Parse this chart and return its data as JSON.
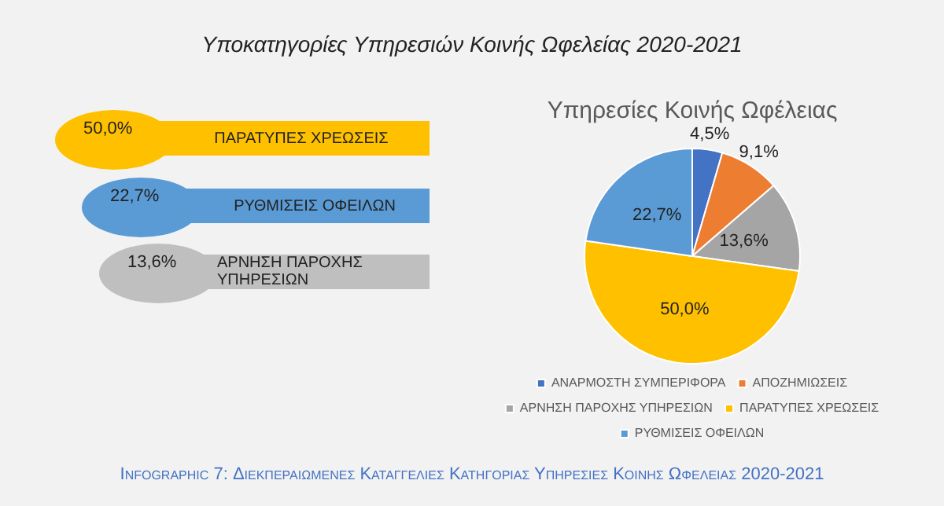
{
  "chart_data": [
    {
      "type": "other",
      "title": "Υποκατηγορίες Υπηρεσιών Κοινής Ωφελείας 2020-2021",
      "categories": [
        "ΠΑΡΑΤΥΠΕΣ ΧΡΕΩΣΕΙΣ",
        "ΡΥΘΜΙΣΕΙΣ ΟΦΕΙΛΩΝ",
        "ΑΡΝΗΣΗ ΠΑΡΟΧΗΣ ΥΠΗΡΕΣΙΩΝ"
      ],
      "value_labels": [
        "50,0%",
        "22,7%",
        "13,6%"
      ],
      "colors": [
        "#ffc000",
        "#5b9bd5",
        "#bfbfbf"
      ],
      "annotations": [
        "Infographic 7: Διεκπεραιωμενες Καταγγελιες Κατηγοριας Υπηρεσιες Κοινης Ωφελειας 2020-2021"
      ]
    },
    {
      "type": "pie",
      "title": "Υπηρεσίες Κοινής Ωφέλειας",
      "categories": [
        "ΑΝΑΡΜΟΣΤΗ ΣΥΜΠΕΡΙΦΟΡΑ",
        "ΑΠΟΖΗΜΙΩΣΕΙΣ",
        "ΑΡΝΗΣΗ ΠΑΡΟΧΗΣ ΥΠΗΡΕΣΙΩΝ",
        "ΠΑΡΑΤΥΠΕΣ ΧΡΕΩΣΕΙΣ",
        "ΡΥΘΜΙΣΕΙΣ ΟΦΕΙΛΩΝ"
      ],
      "values": [
        4.5,
        9.1,
        13.6,
        50.0,
        22.7
      ],
      "value_labels": [
        "4,5%",
        "9,1%",
        "13,6%",
        "50,0%",
        "22,7%"
      ],
      "colors": [
        "#4472c4",
        "#ed7d31",
        "#a5a5a5",
        "#ffc000",
        "#5b9bd5"
      ],
      "legend": "bottom"
    }
  ]
}
